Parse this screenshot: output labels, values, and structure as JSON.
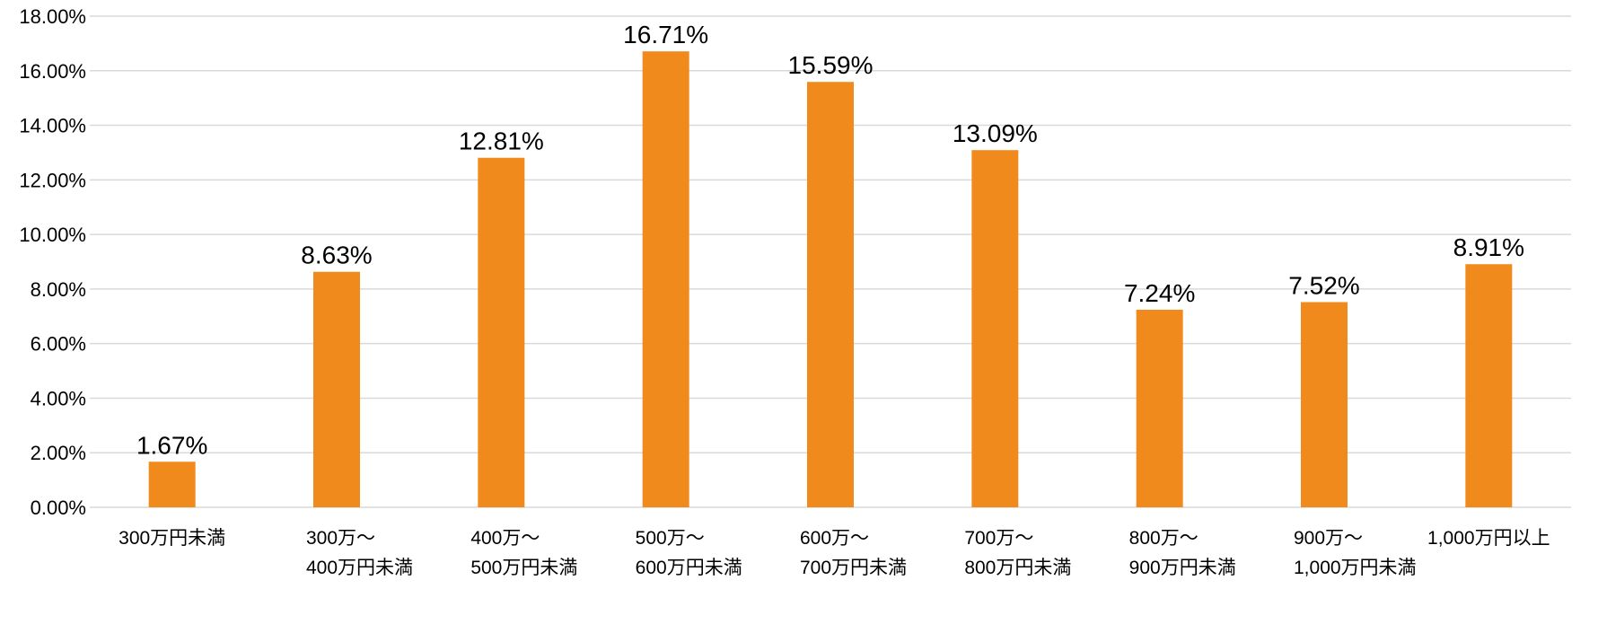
{
  "chart_data": {
    "type": "bar",
    "categories": [
      [
        "300万円未満"
      ],
      [
        "300万〜",
        "400万円未満"
      ],
      [
        "400万〜",
        "500万円未満"
      ],
      [
        "500万〜",
        "600万円未満"
      ],
      [
        "600万〜",
        "700万円未満"
      ],
      [
        "700万〜",
        "800万円未満"
      ],
      [
        "800万〜",
        "900万円未満"
      ],
      [
        "900万〜",
        "1,000万円未満"
      ],
      [
        "1,000万円以上"
      ]
    ],
    "values": [
      1.67,
      8.63,
      12.81,
      16.71,
      15.59,
      13.09,
      7.24,
      7.52,
      8.91
    ],
    "data_labels": [
      "1.67%",
      "8.63%",
      "12.81%",
      "16.71%",
      "15.59%",
      "13.09%",
      "7.24%",
      "7.52%",
      "8.91%"
    ],
    "ylim": [
      0,
      18
    ],
    "y_ticks": [
      0,
      2,
      4,
      6,
      8,
      10,
      12,
      14,
      16,
      18
    ],
    "y_tick_labels": [
      "0.00%",
      "2.00%",
      "4.00%",
      "6.00%",
      "8.00%",
      "10.00%",
      "12.00%",
      "14.00%",
      "16.00%",
      "18.00%"
    ],
    "grid": true,
    "legend": "none",
    "colors": {
      "bar": "#F08A1C",
      "grid": "#D9D9D9",
      "text": "#000000"
    }
  }
}
